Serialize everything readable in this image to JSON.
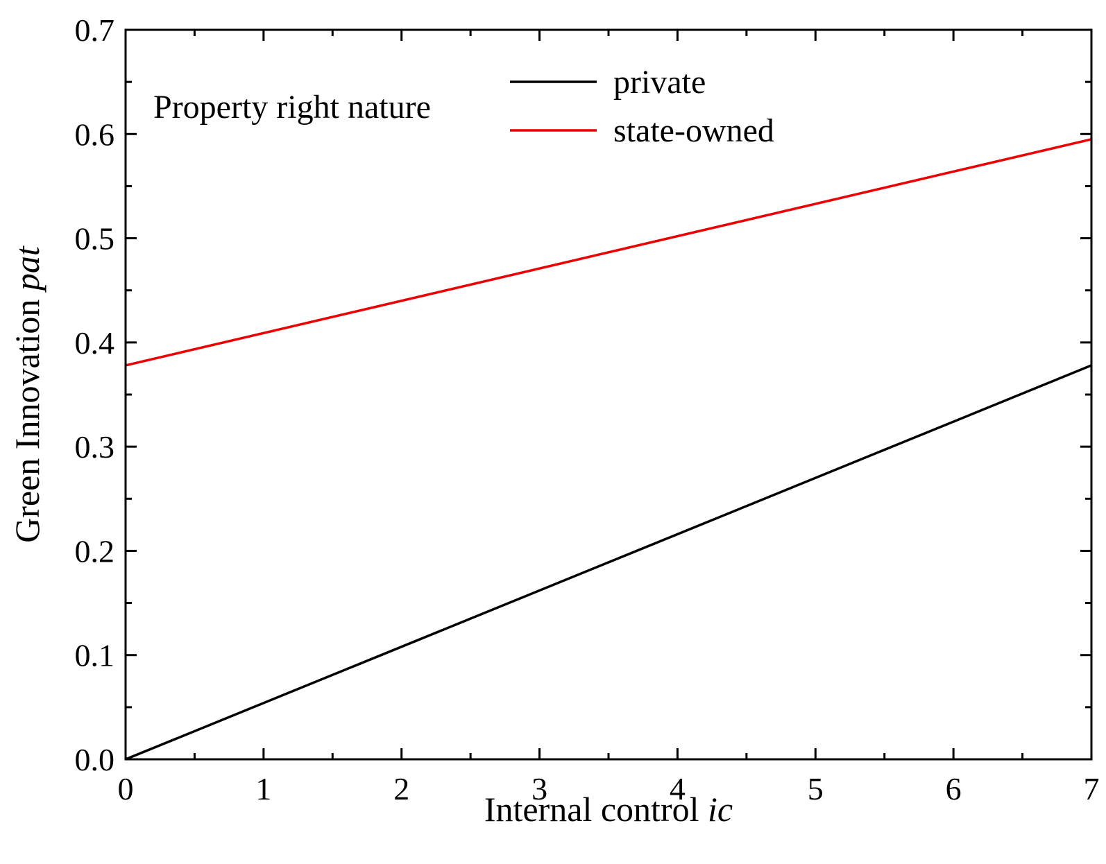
{
  "chart_data": {
    "type": "line",
    "title": "",
    "xlabel": "Internal control ",
    "xlabel_var": "ic",
    "ylabel": "Green Innovation ",
    "ylabel_var": "pat",
    "xlim": [
      0,
      7
    ],
    "ylim": [
      0,
      0.7
    ],
    "x_ticks": [
      "0",
      "1",
      "2",
      "3",
      "4",
      "5",
      "6",
      "7"
    ],
    "y_ticks": [
      "0.0",
      "0.1",
      "0.2",
      "0.3",
      "0.4",
      "0.5",
      "0.6",
      "0.7"
    ],
    "legend_title": "Property right nature",
    "legend_position": "top-left",
    "grid": false,
    "series": [
      {
        "name": "private",
        "color": "#000000",
        "x": [
          0,
          7
        ],
        "y": [
          0.0,
          0.378
        ]
      },
      {
        "name": "state-owned",
        "color": "#ee0000",
        "x": [
          0,
          7
        ],
        "y": [
          0.378,
          0.595
        ]
      }
    ]
  }
}
